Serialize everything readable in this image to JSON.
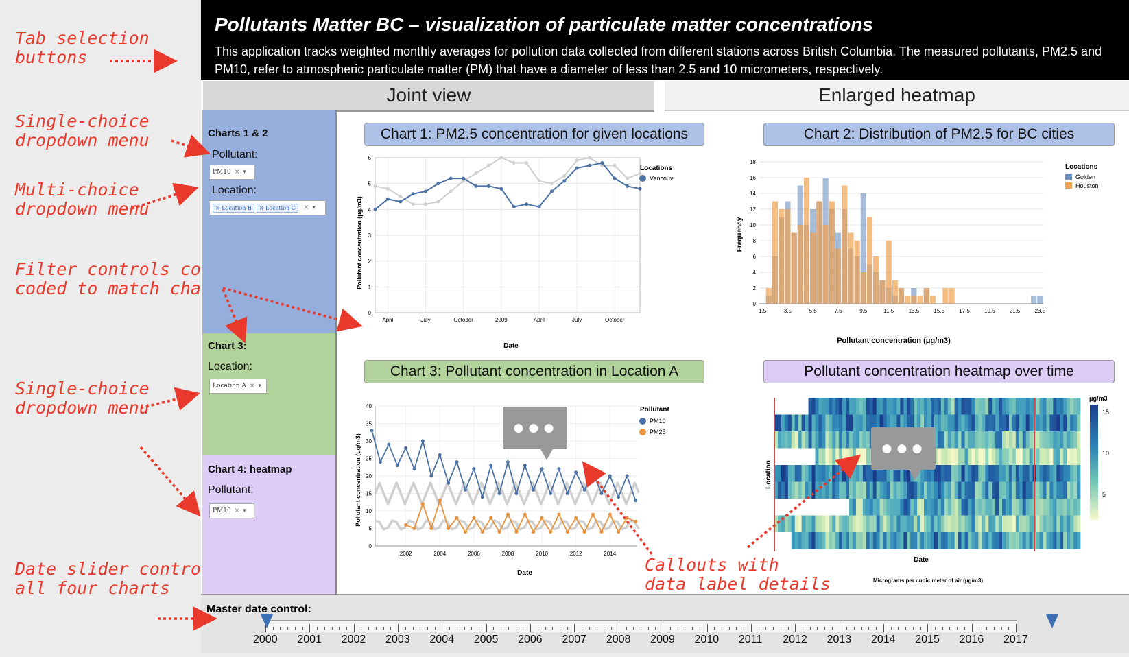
{
  "annotations": {
    "tab_selection": "Tab selection\nbuttons",
    "single_choice_1": "Single-choice\ndropdown menu",
    "multi_choice": "Multi-choice\ndropdown menu",
    "filter_colors": "Filter controls color\ncoded to match charts",
    "single_choice_2": "Single-choice\ndropdown menu",
    "date_slider": "Date slider controls\nall four charts",
    "callouts": "Callouts with\ndata label details"
  },
  "header": {
    "title": "Pollutants Matter BC – visualization of particulate matter concentrations",
    "description": "This application tracks weighted monthly averages for pollution data collected from different stations across British Columbia. The measured pollutants, PM2.5 and PM10, refer to atmospheric particulate matter (PM) that have a diameter of less than 2.5 and 10 micrometers, respectively."
  },
  "tabs": [
    {
      "label": "Joint view",
      "selected": true
    },
    {
      "label": "Enlarged heatmap",
      "selected": false
    }
  ],
  "sidebar": {
    "panel1": {
      "title": "Charts 1 & 2",
      "pollutant_label": "Pollutant:",
      "pollutant_value": "PM10",
      "location_label": "Location:",
      "locations": [
        "Location B",
        "Location C"
      ],
      "color": "#96aedb"
    },
    "panel2": {
      "title": "Chart 3:",
      "location_label": "Location:",
      "location_value": "Location A",
      "color": "#b1d29a"
    },
    "panel3": {
      "title": "Chart 4: heatmap",
      "pollutant_label": "Pollutant:",
      "pollutant_value": "PM10",
      "color": "#dcccf6"
    }
  },
  "charts": {
    "c1": {
      "title": "Chart 1: PM2.5 concentration for given locations",
      "ylabel": "Pollutant concentration (μg/m3)",
      "xlabel": "Date",
      "xticks": [
        "April",
        "July",
        "October",
        "2009",
        "April",
        "July",
        "October"
      ],
      "yticks": [
        "0",
        "1",
        "2",
        "3",
        "4",
        "5",
        "6"
      ],
      "legend_title": "Locations",
      "legend_item": "Vancouver"
    },
    "c2": {
      "title": "Chart 2: Distribution of PM2.5 for BC cities",
      "ylabel": "Frequency",
      "xlabel": "Pollutant concentration (μg/m3)",
      "legend_title": "Locations",
      "legend_items": [
        "Golden",
        "Houston"
      ],
      "xticks": [
        "1.5",
        "3.5",
        "5.5",
        "7.5",
        "9.5",
        "11.5",
        "13.5",
        "15.5",
        "17.5",
        "19.5",
        "21.5",
        "23.5"
      ],
      "yticks": [
        "0",
        "2",
        "4",
        "6",
        "8",
        "10",
        "12",
        "14",
        "16",
        "18"
      ]
    },
    "c3": {
      "title": "Chart 3: Pollutant concentration in Location A",
      "ylabel": "Pollutant concentration (μg/m3)",
      "xlabel": "Date",
      "xticks": [
        "2002",
        "2004",
        "2006",
        "2008",
        "2010",
        "2012",
        "2014"
      ],
      "yticks": [
        "0",
        "5",
        "10",
        "15",
        "20",
        "25",
        "30",
        "35",
        "40"
      ],
      "legend_title": "Pollutant",
      "legend_items": [
        "PM10",
        "PM25"
      ]
    },
    "c4": {
      "title": "Pollutant concentration heatmap over time",
      "ylabel": "Location",
      "xlabel": "Date",
      "legend_title": "μg/m3",
      "legend_ticks": [
        "15",
        "10",
        "5"
      ],
      "caption": "Micrograms per cubic meter of air (μg/m3)"
    }
  },
  "colors": {
    "blue": "#4c72a6",
    "orange": "#e8913a",
    "grey": "#cfcfcf"
  },
  "chart_data": [
    {
      "type": "line",
      "x": [
        "2008-03",
        "2008-04",
        "2008-05",
        "2008-06",
        "2008-07",
        "2008-08",
        "2008-09",
        "2008-10",
        "2008-11",
        "2008-12",
        "2009-01",
        "2009-02",
        "2009-03",
        "2009-04",
        "2009-05",
        "2009-06",
        "2009-07",
        "2009-08",
        "2009-09",
        "2009-10",
        "2009-11",
        "2009-12"
      ],
      "series": [
        {
          "name": "Vancouver",
          "values": [
            4.0,
            4.4,
            4.3,
            4.6,
            4.7,
            5.0,
            5.2,
            5.2,
            4.9,
            4.9,
            4.8,
            4.1,
            4.2,
            4.1,
            4.7,
            5.1,
            5.6,
            5.7,
            5.8,
            5.2,
            4.9,
            4.8
          ]
        },
        {
          "values": [
            4.9,
            4.8,
            4.5,
            4.2,
            4.2,
            4.3,
            4.7,
            5.1,
            5.4,
            5.7,
            6.0,
            5.8,
            5.8,
            5.1,
            5.0,
            5.3,
            5.9,
            6.0,
            5.7,
            5.7,
            5.2,
            5.4
          ]
        }
      ],
      "ylim": [
        0,
        6
      ],
      "title": "Chart 1: PM2.5 concentration for given locations"
    },
    {
      "type": "bar",
      "categories": [
        "1.5",
        "2",
        "2.5",
        "3",
        "3.5",
        "4",
        "4.5",
        "5",
        "5.5",
        "6",
        "6.5",
        "7",
        "7.5",
        "8",
        "8.5",
        "9",
        "9.5",
        "10",
        "10.5",
        "11",
        "11.5",
        "12",
        "12.5",
        "13",
        "13.5",
        "14",
        "14.5",
        "15",
        "15.5",
        "16",
        "16.5",
        "17",
        "17.5",
        "18",
        "18.5",
        "19",
        "19.5",
        "20",
        "20.5",
        "21",
        "21.5",
        "22",
        "22.5",
        "23",
        "23.5"
      ],
      "series": [
        {
          "name": "Golden",
          "values": [
            0,
            1,
            6,
            11,
            13,
            9,
            15,
            10,
            12,
            13,
            16,
            12,
            9,
            12,
            7,
            6,
            14,
            5,
            4,
            3,
            2,
            1,
            2,
            0,
            2,
            0,
            2,
            0,
            0,
            0,
            0,
            0,
            0,
            0,
            0,
            0,
            0,
            0,
            0,
            0,
            0,
            0,
            0,
            1,
            1
          ]
        },
        {
          "name": "Houston",
          "values": [
            0,
            2,
            13,
            12,
            12,
            9,
            10,
            16,
            9,
            13,
            10,
            13,
            7,
            15,
            9,
            8,
            4,
            11,
            6,
            3,
            8,
            3,
            2,
            1,
            1,
            1,
            2,
            1,
            0,
            2,
            2,
            0,
            0,
            0,
            0,
            0,
            0,
            0,
            0,
            0,
            0,
            0,
            0,
            0,
            0
          ]
        }
      ],
      "ylim": [
        0,
        18
      ],
      "title": "Chart 2: Distribution of PM2.5 for BC cities"
    },
    {
      "type": "line",
      "title": "Chart 3: Pollutant concentration in Location A",
      "ylim": [
        0,
        40
      ],
      "series": [
        {
          "name": "PM10",
          "x": [
            2000.0,
            2000.5,
            2001.0,
            2001.5,
            2002.0,
            2002.5,
            2003.0,
            2003.5,
            2004.0,
            2004.5,
            2005.0,
            2005.5,
            2006.0,
            2006.5,
            2007.0,
            2007.5,
            2008.0,
            2008.5,
            2009.0,
            2009.5,
            2010.0,
            2010.5,
            2011.0,
            2011.5,
            2012.0,
            2012.5,
            2013.0,
            2013.5,
            2014.0,
            2014.5,
            2015.0,
            2015.5
          ],
          "values": [
            33,
            24,
            29,
            23,
            28,
            22,
            30,
            20,
            26,
            18,
            24,
            16,
            22,
            14,
            23,
            15,
            24,
            15,
            23,
            16,
            22,
            15,
            22,
            15,
            21,
            16,
            21,
            15,
            20,
            14,
            20,
            13
          ]
        },
        {
          "name": "PM25",
          "x": [
            2002.0,
            2002.5,
            2003.0,
            2003.5,
            2004.0,
            2004.5,
            2005.0,
            2005.5,
            2006.0,
            2006.5,
            2007.0,
            2007.5,
            2008.0,
            2008.5,
            2009.0,
            2009.5,
            2010.0,
            2010.5,
            2011.0,
            2011.5,
            2012.0,
            2012.5,
            2013.0,
            2013.5,
            2014.0,
            2014.5,
            2015.0,
            2015.5
          ],
          "values": [
            6,
            5,
            12,
            5,
            13,
            5,
            8,
            4,
            8,
            4,
            8,
            4,
            9,
            4,
            9,
            4,
            8,
            4,
            9,
            4,
            8,
            4,
            9,
            4,
            9,
            4,
            8,
            7
          ]
        }
      ]
    },
    {
      "type": "heatmap",
      "title": "Pollutant concentration heatmap over time",
      "scale_range": [
        0,
        17
      ]
    }
  ],
  "slider": {
    "label": "Master date control:",
    "years": [
      "2000",
      "2001",
      "2002",
      "2003",
      "2004",
      "2005",
      "2006",
      "2007",
      "2008",
      "2009",
      "2010",
      "2011",
      "2012",
      "2013",
      "2014",
      "2015",
      "2016",
      "2017"
    ],
    "start": "2000",
    "end": "2017"
  }
}
